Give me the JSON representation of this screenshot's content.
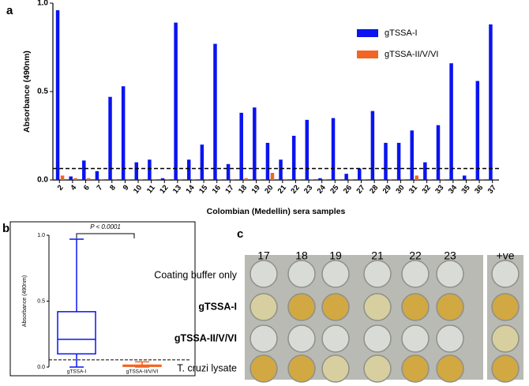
{
  "chart_data": [
    {
      "type": "bar",
      "panel_label": "a",
      "ylabel": "Absorbance (490nm)",
      "xlabel": "Colombian (Medellin) sera samples",
      "categories": [
        "2",
        "4",
        "6",
        "7",
        "8",
        "9",
        "10",
        "11",
        "12",
        "13",
        "14",
        "15",
        "16",
        "17",
        "18",
        "19",
        "20",
        "21",
        "22",
        "23",
        "24",
        "25",
        "26",
        "27",
        "28",
        "29",
        "30",
        "31",
        "32",
        "33",
        "34",
        "35",
        "36",
        "37"
      ],
      "series": [
        {
          "name": "gTSSA-I",
          "color": "#0a14f0",
          "values": [
            0.96,
            0.02,
            0.11,
            0.05,
            0.47,
            0.53,
            0.1,
            0.115,
            0.01,
            0.89,
            0.115,
            0.2,
            0.77,
            0.09,
            0.38,
            0.41,
            0.21,
            0.115,
            0.25,
            0.34,
            0.01,
            0.35,
            0.035,
            0.065,
            0.39,
            0.21,
            0.21,
            0.28,
            0.1,
            0.31,
            0.66,
            0.025,
            0.56,
            0.88
          ]
        },
        {
          "name": "gTSSA-II/V/VI",
          "color": "#f26522",
          "values": [
            0.025,
            0.01,
            0.01,
            0.005,
            0.005,
            0.005,
            0.005,
            0.005,
            0.005,
            0.005,
            0.005,
            0.005,
            0.005,
            0.005,
            0.01,
            0.005,
            0.04,
            0.005,
            0.005,
            0.005,
            0.005,
            0.005,
            0.005,
            0.005,
            0.005,
            0.005,
            0.005,
            0.025,
            0.005,
            0.005,
            0.005,
            0.005,
            0.005,
            0.005
          ]
        }
      ],
      "ylim": [
        0,
        1
      ],
      "yticks": [
        {
          "value": 0,
          "label": "0.0"
        },
        {
          "value": 0.5,
          "label": "0.5"
        },
        {
          "value": 1,
          "label": "1.0"
        }
      ],
      "cutoff": 0.065,
      "legend": "upper right"
    },
    {
      "type": "box",
      "panel_label": "b",
      "ylabel": "Absorbance (490nm)",
      "categories": [
        "gTSSA-I",
        "gTSSA-II/V/VI"
      ],
      "boxes": [
        {
          "color": "#0a14f0",
          "min": 0.0,
          "q1": 0.1,
          "median": 0.21,
          "q3": 0.42,
          "max": 0.97
        },
        {
          "color": "#f26522",
          "min": 0.0,
          "q1": 0.005,
          "median": 0.01,
          "q3": 0.015,
          "max": 0.04
        }
      ],
      "ylim": [
        0,
        1
      ],
      "yticks": [
        {
          "value": 0,
          "label": "0.0"
        },
        {
          "value": 0.5,
          "label": "0.5"
        },
        {
          "value": 1,
          "label": "1.0"
        }
      ],
      "cutoff": 0.055,
      "annotation": "P < 0.0001"
    }
  ],
  "panel_c": {
    "panel_label": "c",
    "columns": [
      "17",
      "18",
      "19",
      "21",
      "22",
      "23",
      "+ve"
    ],
    "rows": [
      "Coating buffer only",
      "gTSSA-I",
      "gTSSA-II/V/VI",
      "T. cruzi lysate"
    ]
  }
}
